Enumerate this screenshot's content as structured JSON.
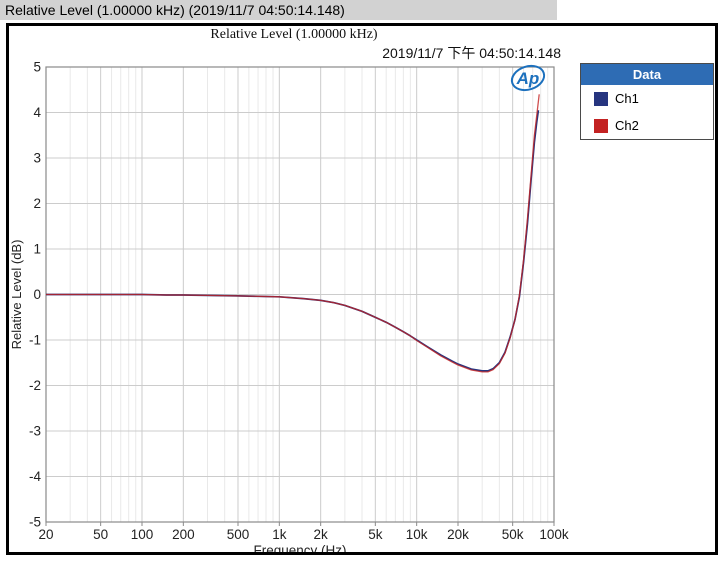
{
  "window": {
    "titlebar_text": "Relative Level (1.00000 kHz) (2019/11/7  04:50:14.148)"
  },
  "header": {
    "title": "Relative Level (1.00000 kHz)",
    "timestamp": "2019/11/7 下午 04:50:14.148"
  },
  "logo": {
    "name": "Audio Precision logo",
    "text": "Ap",
    "color": "#1c70bd"
  },
  "legend": {
    "header": "Data",
    "header_color": "#2e6cb4",
    "items": [
      {
        "label": "Ch1",
        "color": "#26357f"
      },
      {
        "label": "Ch2",
        "color": "#c32222"
      }
    ]
  },
  "chart_data": {
    "type": "line",
    "title": "Relative Level (1.00000 kHz)",
    "xlabel": "Frequency (Hz)",
    "ylabel": "Relative Level (dB)",
    "x_scale": "log",
    "xlim": [
      20,
      100000
    ],
    "ylim": [
      -5,
      5
    ],
    "grid": true,
    "legend_position": "outside-top-right",
    "xticks": [
      20,
      50,
      100,
      200,
      500,
      1000,
      2000,
      5000,
      10000,
      20000,
      50000,
      100000
    ],
    "xtick_labels": [
      "20",
      "50",
      "100",
      "200",
      "500",
      "1k",
      "2k",
      "5k",
      "10k",
      "20k",
      "50k",
      "100k"
    ],
    "yticks": [
      5,
      4,
      3,
      2,
      1,
      0,
      -1,
      -2,
      -3,
      -4,
      -5
    ],
    "ytick_labels": [
      "5",
      "4",
      "3",
      "2",
      "1",
      "0",
      "-1",
      "-2",
      "-3",
      "-4",
      "-5"
    ],
    "colors": {
      "grid_major": "#cccccc",
      "grid_minor": "#e9e9e9",
      "frame": "#8a8a8a"
    },
    "series": [
      {
        "name": "Ch1",
        "color": "#26357f",
        "points": [
          [
            20,
            0.0
          ],
          [
            30,
            0.0
          ],
          [
            50,
            0.0
          ],
          [
            70,
            0.0
          ],
          [
            100,
            0.0
          ],
          [
            150,
            -0.01
          ],
          [
            200,
            -0.01
          ],
          [
            300,
            -0.02
          ],
          [
            500,
            -0.03
          ],
          [
            700,
            -0.04
          ],
          [
            1000,
            -0.05
          ],
          [
            1500,
            -0.09
          ],
          [
            2000,
            -0.13
          ],
          [
            2500,
            -0.18
          ],
          [
            3000,
            -0.24
          ],
          [
            4000,
            -0.37
          ],
          [
            5000,
            -0.5
          ],
          [
            6000,
            -0.61
          ],
          [
            7000,
            -0.72
          ],
          [
            8000,
            -0.82
          ],
          [
            9000,
            -0.91
          ],
          [
            10000,
            -1.0
          ],
          [
            12000,
            -1.15
          ],
          [
            15000,
            -1.33
          ],
          [
            18000,
            -1.46
          ],
          [
            20000,
            -1.53
          ],
          [
            25000,
            -1.64
          ],
          [
            30000,
            -1.68
          ],
          [
            33000,
            -1.68
          ],
          [
            36000,
            -1.63
          ],
          [
            40000,
            -1.5
          ],
          [
            44000,
            -1.27
          ],
          [
            48000,
            -0.93
          ],
          [
            52000,
            -0.55
          ],
          [
            56000,
            -0.05
          ],
          [
            60000,
            0.7
          ],
          [
            64000,
            1.55
          ],
          [
            68000,
            2.5
          ],
          [
            72000,
            3.35
          ],
          [
            75000,
            3.8
          ],
          [
            77000,
            4.05
          ]
        ]
      },
      {
        "name": "Ch2",
        "color": "#c32222",
        "points": [
          [
            20,
            0.0
          ],
          [
            30,
            0.0
          ],
          [
            50,
            0.0
          ],
          [
            70,
            0.0
          ],
          [
            100,
            0.0
          ],
          [
            150,
            -0.01
          ],
          [
            200,
            -0.01
          ],
          [
            300,
            -0.02
          ],
          [
            500,
            -0.03
          ],
          [
            700,
            -0.04
          ],
          [
            1000,
            -0.05
          ],
          [
            1500,
            -0.09
          ],
          [
            2000,
            -0.13
          ],
          [
            2500,
            -0.18
          ],
          [
            3000,
            -0.24
          ],
          [
            4000,
            -0.37
          ],
          [
            5000,
            -0.5
          ],
          [
            6000,
            -0.61
          ],
          [
            7000,
            -0.72
          ],
          [
            8000,
            -0.82
          ],
          [
            9000,
            -0.91
          ],
          [
            10000,
            -1.01
          ],
          [
            12000,
            -1.16
          ],
          [
            15000,
            -1.35
          ],
          [
            18000,
            -1.48
          ],
          [
            20000,
            -1.55
          ],
          [
            25000,
            -1.66
          ],
          [
            30000,
            -1.7
          ],
          [
            33000,
            -1.7
          ],
          [
            36000,
            -1.65
          ],
          [
            40000,
            -1.52
          ],
          [
            44000,
            -1.29
          ],
          [
            48000,
            -0.95
          ],
          [
            52000,
            -0.55
          ],
          [
            56000,
            -0.02
          ],
          [
            60000,
            0.75
          ],
          [
            64000,
            1.65
          ],
          [
            68000,
            2.6
          ],
          [
            72000,
            3.5
          ],
          [
            75000,
            3.95
          ],
          [
            78000,
            4.4
          ]
        ]
      }
    ]
  }
}
